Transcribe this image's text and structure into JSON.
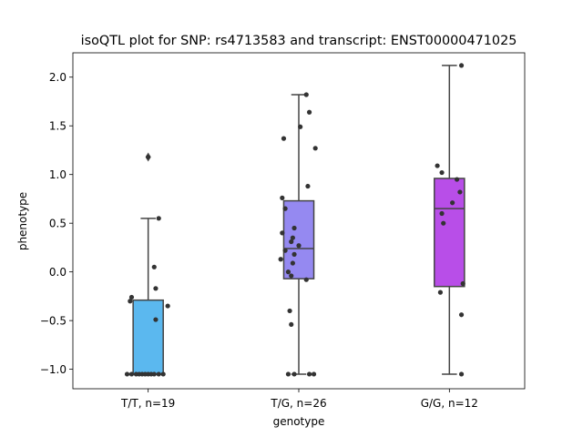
{
  "chart_data": {
    "type": "box",
    "title": "isoQTL plot for SNP: rs4713583 and transcript: ENST00000471025",
    "xlabel": "genotype",
    "ylabel": "phenotype",
    "ylim": [
      -1.2,
      2.25
    ],
    "yticks": [
      -1.0,
      -0.5,
      0.0,
      0.5,
      1.0,
      1.5,
      2.0
    ],
    "ytick_labels": [
      "−1.0",
      "−0.5",
      "0.0",
      "0.5",
      "1.0",
      "1.5",
      "2.0"
    ],
    "grid": false,
    "categories": [
      "T/T, n=19",
      "T/G, n=26",
      "G/G, n=12"
    ],
    "boxes": [
      {
        "label": "T/T, n=19",
        "color": "#5bb8ef",
        "whisker_low": -1.05,
        "q1": -1.05,
        "median": -1.05,
        "q3": -0.29,
        "whisker_high": 0.55,
        "outliers": [
          1.18
        ],
        "points": [
          {
            "dx": 0.0,
            "y": 1.18
          },
          {
            "dx": 0.07,
            "y": 0.55
          },
          {
            "dx": 0.04,
            "y": 0.05
          },
          {
            "dx": 0.05,
            "y": -0.17
          },
          {
            "dx": -0.11,
            "y": -0.26
          },
          {
            "dx": -0.12,
            "y": -0.3
          },
          {
            "dx": 0.13,
            "y": -0.35
          },
          {
            "dx": 0.05,
            "y": -0.49
          },
          {
            "dx": -0.14,
            "y": -1.05
          },
          {
            "dx": -0.11,
            "y": -1.05
          },
          {
            "dx": -0.08,
            "y": -1.05
          },
          {
            "dx": -0.06,
            "y": -1.05
          },
          {
            "dx": -0.04,
            "y": -1.05
          },
          {
            "dx": -0.02,
            "y": -1.05
          },
          {
            "dx": 0.0,
            "y": -1.05
          },
          {
            "dx": 0.02,
            "y": -1.05
          },
          {
            "dx": 0.04,
            "y": -1.05
          },
          {
            "dx": 0.07,
            "y": -1.05
          },
          {
            "dx": 0.1,
            "y": -1.05
          }
        ]
      },
      {
        "label": "T/G, n=26",
        "color": "#9589f1",
        "whisker_low": -1.05,
        "q1": -0.07,
        "median": 0.24,
        "q3": 0.73,
        "whisker_high": 1.82,
        "outliers": [],
        "points": [
          {
            "dx": 0.05,
            "y": 1.82
          },
          {
            "dx": 0.07,
            "y": 1.64
          },
          {
            "dx": 0.01,
            "y": 1.49
          },
          {
            "dx": -0.1,
            "y": 1.37
          },
          {
            "dx": 0.11,
            "y": 1.27
          },
          {
            "dx": 0.06,
            "y": 0.88
          },
          {
            "dx": -0.11,
            "y": 0.76
          },
          {
            "dx": -0.09,
            "y": 0.65
          },
          {
            "dx": -0.03,
            "y": 0.45
          },
          {
            "dx": -0.11,
            "y": 0.4
          },
          {
            "dx": -0.04,
            "y": 0.35
          },
          {
            "dx": -0.05,
            "y": 0.31
          },
          {
            "dx": 0.0,
            "y": 0.27
          },
          {
            "dx": -0.09,
            "y": 0.22
          },
          {
            "dx": -0.03,
            "y": 0.18
          },
          {
            "dx": -0.12,
            "y": 0.13
          },
          {
            "dx": -0.04,
            "y": 0.09
          },
          {
            "dx": -0.07,
            "y": 0.0
          },
          {
            "dx": -0.05,
            "y": -0.04
          },
          {
            "dx": 0.05,
            "y": -0.08
          },
          {
            "dx": -0.06,
            "y": -0.4
          },
          {
            "dx": -0.05,
            "y": -0.54
          },
          {
            "dx": -0.07,
            "y": -1.05
          },
          {
            "dx": -0.03,
            "y": -1.05
          },
          {
            "dx": 0.07,
            "y": -1.05
          },
          {
            "dx": 0.1,
            "y": -1.05
          }
        ]
      },
      {
        "label": "G/G, n=12",
        "color": "#b84ee8",
        "whisker_low": -1.05,
        "q1": -0.15,
        "median": 0.65,
        "q3": 0.96,
        "whisker_high": 2.12,
        "outliers": [],
        "points": [
          {
            "dx": 0.08,
            "y": 2.12
          },
          {
            "dx": -0.08,
            "y": 1.09
          },
          {
            "dx": -0.05,
            "y": 1.02
          },
          {
            "dx": 0.05,
            "y": 0.95
          },
          {
            "dx": 0.07,
            "y": 0.82
          },
          {
            "dx": 0.02,
            "y": 0.71
          },
          {
            "dx": -0.05,
            "y": 0.6
          },
          {
            "dx": -0.04,
            "y": 0.5
          },
          {
            "dx": 0.09,
            "y": -0.12
          },
          {
            "dx": -0.06,
            "y": -0.21
          },
          {
            "dx": 0.08,
            "y": -0.44
          },
          {
            "dx": 0.08,
            "y": -1.05
          }
        ]
      }
    ]
  }
}
